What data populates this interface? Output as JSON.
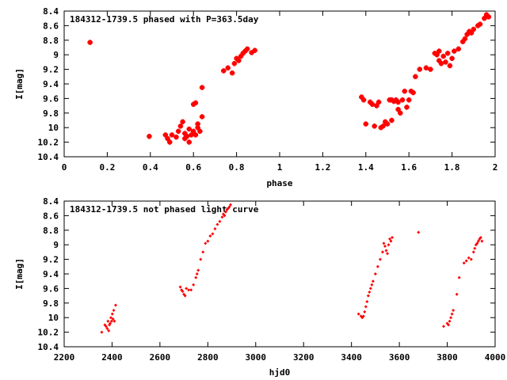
{
  "chart_data": [
    {
      "type": "scatter",
      "title": "184312-1739.5 phased with P=363.5day",
      "xlabel": "phase",
      "ylabel": "I[mag]",
      "xlim": [
        0,
        2
      ],
      "ylim": [
        10.4,
        8.4
      ],
      "y_inverted": true,
      "xticks": [
        "0",
        "0.2",
        "0.4",
        "0.6",
        "0.8",
        "1",
        "1.2",
        "1.4",
        "1.6",
        "1.8",
        "2"
      ],
      "yticks": [
        "8.4",
        "8.6",
        "8.8",
        "9",
        "9.2",
        "9.4",
        "9.6",
        "9.8",
        "10",
        "10.2",
        "10.4"
      ],
      "marker_color": "#ff0000",
      "marker": "filled-cross",
      "grid": false,
      "series": [
        {
          "x": [
            0.12,
            0.395,
            0.47,
            0.48,
            0.49,
            0.5,
            0.52,
            0.53,
            0.54,
            0.55,
            0.56,
            0.56,
            0.57,
            0.58,
            0.58,
            0.59,
            0.6,
            0.6,
            0.61,
            0.61,
            0.62,
            0.62,
            0.63,
            0.64,
            0.64,
            0.74,
            0.76,
            0.78,
            0.79,
            0.8,
            0.81,
            0.82,
            0.83,
            0.84,
            0.85,
            0.87,
            0.885,
            1.38,
            1.39,
            1.4,
            1.42,
            1.43,
            1.44,
            1.45,
            1.46,
            1.47,
            1.48,
            1.49,
            1.5,
            1.51,
            1.52,
            1.52,
            1.53,
            1.54,
            1.55,
            1.55,
            1.56,
            1.57,
            1.58,
            1.59,
            1.6,
            1.61,
            1.62,
            1.63,
            1.65,
            1.68,
            1.7,
            1.72,
            1.73,
            1.74,
            1.74,
            1.75,
            1.76,
            1.77,
            1.78,
            1.79,
            1.8,
            1.81,
            1.83,
            1.85,
            1.86,
            1.87,
            1.88,
            1.89,
            1.9,
            1.92,
            1.93,
            1.95,
            1.96,
            1.97
          ],
          "y": [
            8.83,
            10.12,
            10.1,
            10.15,
            10.2,
            10.1,
            10.13,
            10.05,
            9.98,
            9.92,
            10.08,
            10.15,
            10.12,
            10.2,
            10.02,
            10.1,
            10.05,
            9.68,
            10.1,
            9.66,
            10.0,
            9.95,
            10.05,
            9.85,
            9.45,
            9.22,
            9.18,
            9.25,
            9.12,
            9.05,
            9.08,
            9.02,
            8.98,
            8.95,
            8.92,
            8.97,
            8.94,
            9.58,
            9.62,
            9.95,
            9.65,
            9.68,
            9.98,
            9.7,
            9.65,
            10.0,
            9.98,
            9.92,
            9.95,
            9.62,
            9.9,
            9.62,
            9.64,
            9.62,
            9.65,
            9.75,
            9.8,
            9.62,
            9.5,
            9.72,
            9.62,
            9.5,
            9.52,
            9.3,
            9.2,
            9.18,
            9.2,
            8.98,
            9.0,
            9.08,
            8.95,
            9.12,
            9.02,
            9.1,
            8.98,
            9.15,
            9.05,
            8.95,
            8.92,
            8.82,
            8.78,
            8.72,
            8.68,
            8.7,
            8.65,
            8.6,
            8.58,
            8.5,
            8.45,
            8.48
          ]
        }
      ]
    },
    {
      "type": "scatter",
      "title": "184312-1739.5 not phased light curve",
      "xlabel": "hjd0",
      "ylabel": "I[mag]",
      "xlim": [
        2200,
        4000
      ],
      "ylim": [
        10.4,
        8.4
      ],
      "y_inverted": true,
      "xticks": [
        "2200",
        "2400",
        "2600",
        "2800",
        "3000",
        "3200",
        "3400",
        "3600",
        "3800",
        "4000"
      ],
      "yticks": [
        "8.4",
        "8.6",
        "8.8",
        "9",
        "9.2",
        "9.4",
        "9.6",
        "9.8",
        "10",
        "10.2",
        "10.4"
      ],
      "marker_color": "#ff0000",
      "marker": "small-diamond",
      "grid": false,
      "series": [
        {
          "x": [
            2357,
            2370,
            2375,
            2380,
            2383,
            2386,
            2389,
            2392,
            2395,
            2398,
            2401,
            2404,
            2407,
            2410,
            2415,
            2685,
            2690,
            2695,
            2700,
            2705,
            2710,
            2720,
            2730,
            2740,
            2750,
            2755,
            2760,
            2770,
            2780,
            2790,
            2800,
            2810,
            2820,
            2830,
            2840,
            2850,
            2860,
            2865,
            2870,
            2875,
            2880,
            2885,
            2890,
            2895,
            3430,
            3440,
            3445,
            3450,
            3455,
            3460,
            3465,
            3470,
            3475,
            3480,
            3485,
            3490,
            3500,
            3510,
            3520,
            3530,
            3535,
            3540,
            3545,
            3550,
            3555,
            3560,
            3565,
            3570,
            3680,
            3785,
            3800,
            3805,
            3810,
            3815,
            3820,
            3825,
            3840,
            3850,
            3870,
            3880,
            3890,
            3900,
            3910,
            3915,
            3920,
            3925,
            3930,
            3935,
            3940,
            3945
          ],
          "y": [
            10.2,
            10.1,
            10.12,
            10.15,
            10.05,
            10.18,
            10.1,
            10.08,
            10.0,
            10.05,
            9.95,
            10.02,
            9.9,
            10.05,
            9.83,
            9.58,
            9.62,
            9.64,
            9.68,
            9.7,
            9.6,
            9.62,
            9.62,
            9.55,
            9.45,
            9.4,
            9.35,
            9.2,
            9.1,
            8.98,
            8.95,
            8.88,
            8.85,
            8.78,
            8.72,
            8.68,
            8.62,
            8.58,
            8.6,
            8.55,
            8.52,
            8.5,
            8.48,
            8.45,
            9.95,
            9.98,
            10.0,
            9.98,
            9.92,
            9.85,
            9.78,
            9.7,
            9.65,
            9.6,
            9.55,
            9.5,
            9.4,
            9.3,
            9.2,
            9.1,
            8.98,
            9.02,
            9.08,
            9.12,
            9.0,
            8.92,
            8.95,
            8.9,
            8.83,
            10.12,
            10.08,
            10.1,
            10.05,
            10.0,
            9.95,
            9.9,
            9.68,
            9.45,
            9.25,
            9.22,
            9.18,
            9.2,
            9.1,
            9.05,
            9.0,
            8.98,
            8.95,
            8.92,
            8.9,
            8.95
          ]
        }
      ]
    }
  ]
}
